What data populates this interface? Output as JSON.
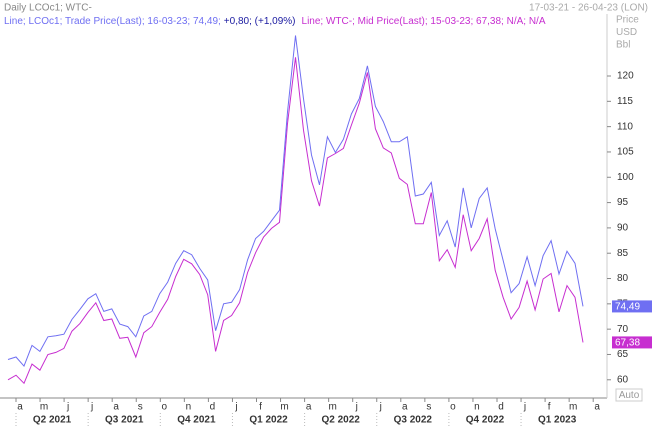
{
  "chart_data": {
    "type": "line",
    "title": "Daily LCOc1; WTC-",
    "date_range": "17-03-21 - 26-04-23 (LON)",
    "y_axis_label": [
      "Price",
      "USD",
      "Bbl"
    ],
    "legend_lines": [
      {
        "text": "Line; LCOc1; Trade Price(Last); 16-03-23; 74,49;",
        "change": "+0,80; (+1,09%)"
      },
      {
        "text": "Line; WTC-; Mid Price(Last); 15-03-23; 67,38; N/A; N/A"
      }
    ],
    "months": [
      "a",
      "m",
      "j",
      "j",
      "a",
      "s",
      "o",
      "n",
      "d",
      "j",
      "f",
      "m",
      "a",
      "m",
      "j",
      "j",
      "a",
      "s",
      "o",
      "n",
      "d",
      "j",
      "f",
      "m",
      "a"
    ],
    "quarters": [
      "Q2 2021",
      "Q3 2021",
      "Q4 2021",
      "Q1 2022",
      "Q2 2022",
      "Q3 2022",
      "Q4 2022",
      "Q1 2023"
    ],
    "scale_mode": "Auto",
    "ylim": [
      56.6,
      128.1
    ],
    "yticks": [
      60,
      65,
      70,
      75,
      80,
      85,
      90,
      95,
      100,
      105,
      110,
      115,
      120
    ],
    "series": [
      {
        "name": "LCOc1",
        "color": "#6f6ff2",
        "value_label": "74,49",
        "values": [
          64,
          64.5,
          62.7,
          66.8,
          65.6,
          68.5,
          68.7,
          69,
          71.9,
          73.9,
          76,
          77,
          73.5,
          74,
          71,
          70.5,
          68.5,
          72.6,
          73.5,
          77,
          79.3,
          83,
          85.5,
          84.7,
          82,
          79.7,
          69.7,
          75,
          75.3,
          77.8,
          83.7,
          87.9,
          89.3,
          91.4,
          93.5,
          112.9,
          128,
          115.5,
          104.4,
          98.5,
          108,
          104.9,
          107.5,
          112.5,
          115.6,
          122,
          114,
          111,
          107,
          107,
          108,
          96.3,
          96.7,
          99,
          88.5,
          91.4,
          86.2,
          97.9,
          90,
          95.8,
          97.9,
          89.8,
          83.6,
          77.2,
          79,
          84.3,
          78.6,
          84.5,
          87.5,
          80.9,
          85.4,
          83,
          74.49
        ]
      },
      {
        "name": "WTC-",
        "color": "#c72ed0",
        "value_label": "67,38",
        "values": [
          60,
          60.9,
          59.3,
          63.1,
          61.9,
          65,
          65.4,
          66.2,
          69.6,
          71.1,
          73.3,
          75.2,
          71.7,
          72,
          68.2,
          68.4,
          64.5,
          69.3,
          70.5,
          73.3,
          75.9,
          80.4,
          83.8,
          82.9,
          80.8,
          76.8,
          65.6,
          71.7,
          72.7,
          75.2,
          81.2,
          85.1,
          88.2,
          89.9,
          91.1,
          110.6,
          123.7,
          109.3,
          99.3,
          94.3,
          103.8,
          104.7,
          105.7,
          110.3,
          114.7,
          120.7,
          109.6,
          105.8,
          104.8,
          99.8,
          98.6,
          90.8,
          90.8,
          97,
          83.5,
          85.7,
          82.2,
          92.6,
          85.5,
          87.9,
          91.8,
          81.6,
          76.3,
          72,
          74.3,
          79.5,
          73.8,
          79.9,
          81,
          73.4,
          78.6,
          76.3,
          67.38
        ]
      }
    ]
  }
}
